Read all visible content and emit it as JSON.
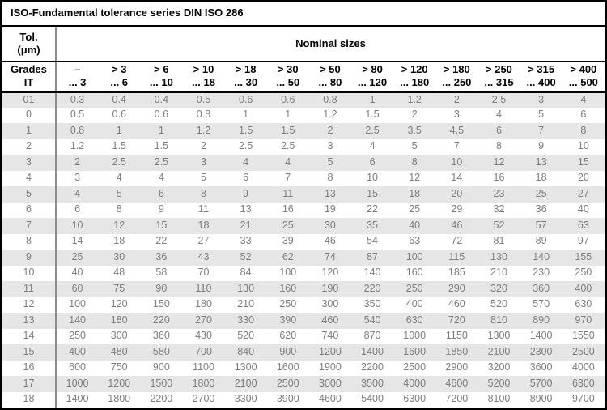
{
  "table": {
    "title": "ISO-Fundamental tolerance series DIN ISO 286",
    "corner_line1": "Tol.",
    "corner_line2": "(μm)",
    "group_header": "Nominal sizes",
    "grades_line1": "Grades",
    "grades_line2": "IT",
    "columns": [
      {
        "top": "–",
        "bottom": "... 3"
      },
      {
        "top": "> 3",
        "bottom": "... 6"
      },
      {
        "top": "> 6",
        "bottom": "... 10"
      },
      {
        "top": "> 10",
        "bottom": "... 18"
      },
      {
        "top": "> 18",
        "bottom": "... 30"
      },
      {
        "top": "> 30",
        "bottom": "... 50"
      },
      {
        "top": "> 50",
        "bottom": "... 80"
      },
      {
        "top": "> 80",
        "bottom": "... 120"
      },
      {
        "top": "> 120",
        "bottom": "... 180"
      },
      {
        "top": "> 180",
        "bottom": "... 250"
      },
      {
        "top": "> 250",
        "bottom": "... 315"
      },
      {
        "top": "> 315",
        "bottom": "... 400"
      },
      {
        "top": "> 400",
        "bottom": "... 500"
      }
    ],
    "rows": [
      {
        "grade": "01",
        "values": [
          "0.3",
          "0.4",
          "0.4",
          "0.5",
          "0.6",
          "0.6",
          "0.8",
          "1",
          "1.2",
          "2",
          "2.5",
          "3",
          "4"
        ]
      },
      {
        "grade": "0",
        "values": [
          "0.5",
          "0.6",
          "0.6",
          "0.8",
          "1",
          "1",
          "1.2",
          "1.5",
          "2",
          "3",
          "4",
          "5",
          "6"
        ]
      },
      {
        "grade": "1",
        "values": [
          "0.8",
          "1",
          "1",
          "1.2",
          "1.5",
          "1.5",
          "2",
          "2.5",
          "3.5",
          "4.5",
          "6",
          "7",
          "8"
        ]
      },
      {
        "grade": "2",
        "values": [
          "1.2",
          "1.5",
          "1.5",
          "2",
          "2.5",
          "2.5",
          "3",
          "4",
          "5",
          "7",
          "8",
          "9",
          "10"
        ]
      },
      {
        "grade": "3",
        "values": [
          "2",
          "2.5",
          "2.5",
          "3",
          "4",
          "4",
          "5",
          "6",
          "8",
          "10",
          "12",
          "13",
          "15"
        ]
      },
      {
        "grade": "4",
        "values": [
          "3",
          "4",
          "4",
          "5",
          "6",
          "7",
          "8",
          "10",
          "12",
          "14",
          "16",
          "18",
          "20"
        ]
      },
      {
        "grade": "5",
        "values": [
          "4",
          "5",
          "6",
          "8",
          "9",
          "11",
          "13",
          "15",
          "18",
          "20",
          "23",
          "25",
          "27"
        ]
      },
      {
        "grade": "6",
        "values": [
          "6",
          "8",
          "9",
          "11",
          "13",
          "16",
          "19",
          "22",
          "25",
          "29",
          "32",
          "36",
          "40"
        ]
      },
      {
        "grade": "7",
        "values": [
          "10",
          "12",
          "15",
          "18",
          "21",
          "25",
          "30",
          "35",
          "40",
          "46",
          "52",
          "57",
          "63"
        ]
      },
      {
        "grade": "8",
        "values": [
          "14",
          "18",
          "22",
          "27",
          "33",
          "39",
          "46",
          "54",
          "63",
          "72",
          "81",
          "89",
          "97"
        ]
      },
      {
        "grade": "9",
        "values": [
          "25",
          "30",
          "36",
          "43",
          "52",
          "62",
          "74",
          "87",
          "100",
          "115",
          "130",
          "140",
          "155"
        ]
      },
      {
        "grade": "10",
        "values": [
          "40",
          "48",
          "58",
          "70",
          "84",
          "100",
          "120",
          "140",
          "160",
          "185",
          "210",
          "230",
          "250"
        ]
      },
      {
        "grade": "11",
        "values": [
          "60",
          "75",
          "90",
          "110",
          "130",
          "160",
          "190",
          "220",
          "250",
          "290",
          "320",
          "360",
          "400"
        ]
      },
      {
        "grade": "12",
        "values": [
          "100",
          "120",
          "150",
          "180",
          "210",
          "250",
          "300",
          "350",
          "400",
          "460",
          "520",
          "570",
          "630"
        ]
      },
      {
        "grade": "13",
        "values": [
          "140",
          "180",
          "220",
          "270",
          "330",
          "390",
          "460",
          "540",
          "630",
          "720",
          "810",
          "890",
          "970"
        ]
      },
      {
        "grade": "14",
        "values": [
          "250",
          "300",
          "360",
          "430",
          "520",
          "620",
          "740",
          "870",
          "1000",
          "1150",
          "1300",
          "1400",
          "1550"
        ]
      },
      {
        "grade": "15",
        "values": [
          "400",
          "480",
          "580",
          "700",
          "840",
          "900",
          "1200",
          "1400",
          "1600",
          "1850",
          "2100",
          "2300",
          "2500"
        ]
      },
      {
        "grade": "16",
        "values": [
          "600",
          "750",
          "900",
          "1100",
          "1300",
          "1600",
          "1900",
          "2200",
          "2500",
          "2900",
          "3200",
          "3600",
          "4000"
        ]
      },
      {
        "grade": "17",
        "values": [
          "1000",
          "1200",
          "1500",
          "1800",
          "2100",
          "2500",
          "3000",
          "3500",
          "4000",
          "4600",
          "5200",
          "5700",
          "6300"
        ]
      },
      {
        "grade": "18",
        "values": [
          "1400",
          "1800",
          "2200",
          "2700",
          "3300",
          "3900",
          "4600",
          "5400",
          "6300",
          "7200",
          "8100",
          "8900",
          "9700"
        ]
      }
    ]
  }
}
